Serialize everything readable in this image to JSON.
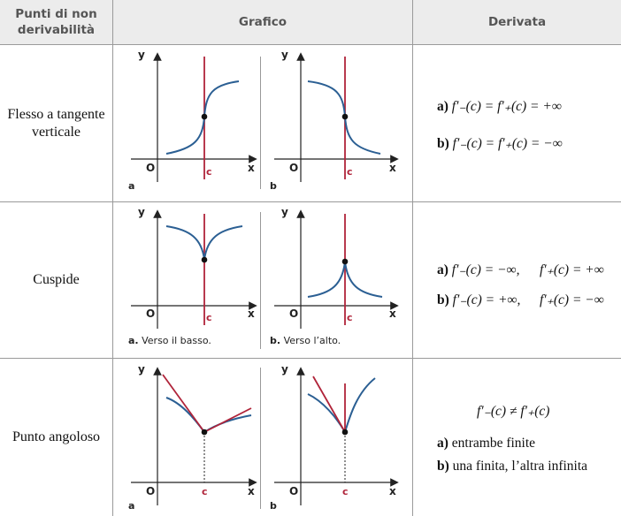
{
  "headers": {
    "col1": "Punti di non derivabilità",
    "col1_line1": "Punti di non",
    "col1_line2": "derivabilità",
    "col2": "Grafico",
    "col3": "Derivata"
  },
  "rows": [
    {
      "label_line1": "Flesso a tangente",
      "label_line2": "verticale",
      "graph_a": {
        "tag": "a",
        "caption": ""
      },
      "graph_b": {
        "tag": "b",
        "caption": ""
      },
      "derivata": {
        "a_tag": "a)",
        "a_text": "f′₋(c) = f′₊(c) = +∞",
        "b_tag": "b)",
        "b_text": "f′₋(c) = f′₊(c) = −∞"
      }
    },
    {
      "label_line1": "Cuspide",
      "label_line2": "",
      "graph_a": {
        "tag": "a.",
        "caption": "Verso il basso."
      },
      "graph_b": {
        "tag": "b.",
        "caption": "Verso l’alto."
      },
      "derivata": {
        "a_tag": "a)",
        "a_left": "f′₋(c) = −∞,",
        "a_right": "f′₊(c) = +∞",
        "b_tag": "b)",
        "b_left": "f′₋(c) = +∞,",
        "b_right": "f′₊(c) = −∞"
      }
    },
    {
      "label_line1": "Punto angoloso",
      "label_line2": "",
      "graph_a": {
        "tag": "a",
        "caption": ""
      },
      "graph_b": {
        "tag": "b",
        "caption": ""
      },
      "derivata": {
        "main": "f′₋(c) ≠ f′₊(c)",
        "a_tag": "a)",
        "a_text": "entrambe finite",
        "b_tag": "b)",
        "b_text": "una finita, l’altra infinita"
      }
    }
  ],
  "axis_labels": {
    "x": "x",
    "y": "y",
    "origin": "O",
    "c": "c"
  },
  "colors": {
    "curve": "#2b5f93",
    "tangent": "#b0243a",
    "header_bg": "#ececec",
    "border": "#9a9a9a"
  }
}
